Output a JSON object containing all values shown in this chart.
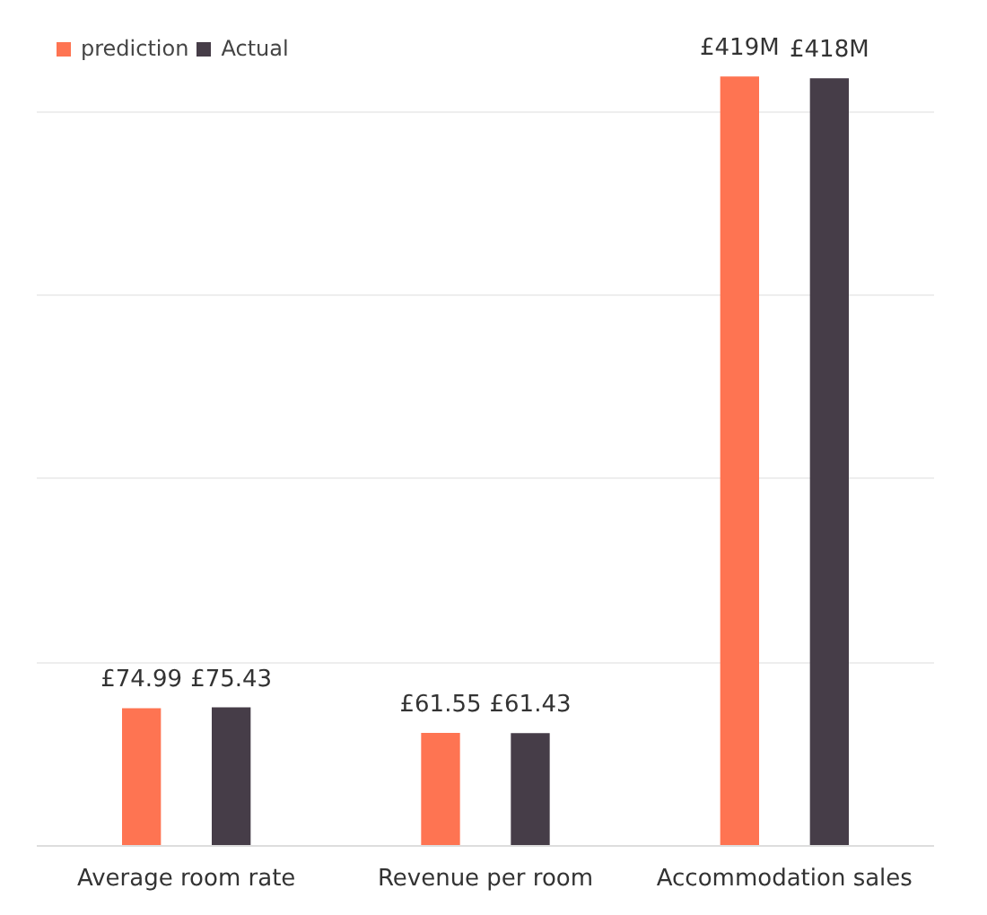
{
  "chart_data": {
    "type": "bar",
    "categories": [
      "Average room rate",
      "Revenue per room",
      "Accommodation sales"
    ],
    "series": [
      {
        "name": "prediction",
        "color": "#fe7452",
        "values": [
          74.99,
          61.55,
          419
        ],
        "value_labels": [
          "£74.99",
          "£61.55",
          "£419M"
        ]
      },
      {
        "name": "Actual",
        "color": "#463d48",
        "values": [
          75.43,
          61.43,
          418
        ],
        "value_labels": [
          "£75.43",
          "£61.43",
          "£418M"
        ]
      }
    ],
    "tick_labels": "x",
    "grid": "y",
    "legend": "top left"
  }
}
